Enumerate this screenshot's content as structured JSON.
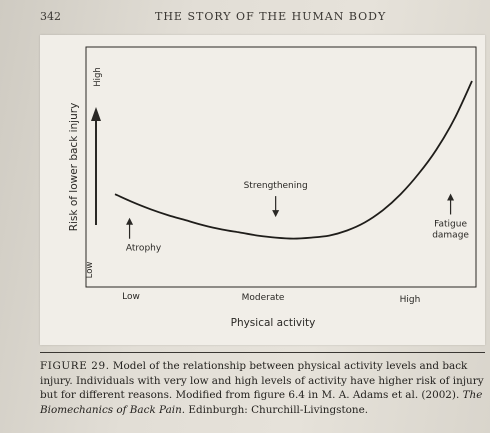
{
  "book": {
    "page_number": "342",
    "running_head": "THE STORY OF THE HUMAN BODY"
  },
  "chart_data": {
    "type": "line",
    "xlabel": "Physical activity",
    "ylabel": "Risk of lower back injury",
    "x_ticks": [
      "Low",
      "Moderate",
      "High"
    ],
    "y_ticks": [
      "Low",
      "High"
    ],
    "x_range": [
      0,
      1
    ],
    "y_range": [
      0,
      1
    ],
    "grid": false,
    "legend": "none",
    "series": [
      {
        "x": [
          0.0,
          0.05,
          0.1,
          0.15,
          0.2,
          0.25,
          0.3,
          0.35,
          0.4,
          0.45,
          0.5,
          0.55,
          0.6,
          0.65,
          0.7,
          0.75,
          0.8,
          0.85,
          0.9,
          0.95,
          1.0
        ],
        "y": [
          0.42,
          0.38,
          0.345,
          0.315,
          0.29,
          0.265,
          0.245,
          0.23,
          0.215,
          0.205,
          0.2,
          0.205,
          0.215,
          0.24,
          0.28,
          0.34,
          0.42,
          0.52,
          0.64,
          0.79,
          0.98
        ]
      }
    ],
    "annotations": [
      {
        "text": "Atrophy",
        "x": 0.08,
        "y": 0.14,
        "arrow": "up"
      },
      {
        "text": "Strengthening",
        "x": 0.45,
        "y": 0.45,
        "arrow": "down"
      },
      {
        "text": "Fatigue",
        "text2": "damage",
        "x": 0.94,
        "y": 0.26,
        "arrow": "up"
      }
    ]
  },
  "caption": {
    "label": "FIGURE 29.",
    "text_1": " Model of the relationship between physical activity levels and back injury. Individuals with very low and high levels of activity have higher risk of injury but for different reasons. Modified from figure 6.4 in M. A. Adams et al. (2002). ",
    "italic": "The Biomechanics of Back Pain",
    "text_2": ". Edinburgh: Churchill-Livingstone."
  }
}
